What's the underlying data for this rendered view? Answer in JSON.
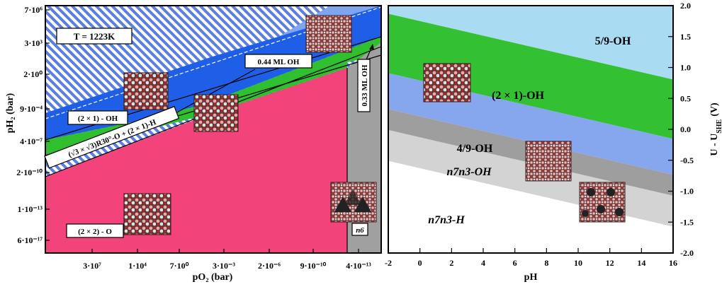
{
  "chart_data": [
    {
      "type": "area",
      "panel": "left",
      "annotation_temperature": "T = 1223K",
      "xlabel": "pO₂ (bar)",
      "ylabel": "pH₂ (bar)",
      "x_ticks": [
        "3·10⁷",
        "1·10⁴",
        "7·10⁰",
        "3·10⁻³",
        "2·10⁻⁶",
        "9·10⁻¹⁰",
        "4·10⁻¹³"
      ],
      "y_ticks": [
        "7·10⁶",
        "3·10³",
        "2·10⁰",
        "9·10⁻⁴",
        "4·10⁻⁷",
        "2·10⁻¹⁰",
        "1·10⁻¹³",
        "6·10⁻¹⁷"
      ],
      "regions": [
        {
          "label": "(2 × 2) - O",
          "color": "#f2437a"
        },
        {
          "label": "(√3 × √3)R30°-O + (2 × 1)-H",
          "color": "#2fbf2f"
        },
        {
          "label": "(2 × 1) - OH",
          "color": "#1f5fe8"
        },
        {
          "label": "0.44 ML OH",
          "color": "#7fa4f0"
        },
        {
          "label": "0.33 ML OH",
          "color": "#a0a0a0"
        },
        {
          "label": "n6",
          "color": "#a0a0a0"
        },
        {
          "label": "",
          "color": "#5b7fdc",
          "pattern": "hatched"
        }
      ]
    },
    {
      "type": "area",
      "panel": "right",
      "xlabel": "pH",
      "ylabel": "U - U_SHE (V)",
      "ylabel_main": "U - U",
      "ylabel_sub": "SHE",
      "ylabel_unit": "(V)",
      "xlim": [
        -2,
        16
      ],
      "ylim": [
        -2.0,
        2.0
      ],
      "x_ticks": [
        "-2",
        "0",
        "2",
        "4",
        "6",
        "8",
        "10",
        "12",
        "14",
        "16"
      ],
      "y_ticks": [
        "2.0",
        "1.5",
        "1.0",
        "0.5",
        "0.0",
        "-0.5",
        "-1.0",
        "-1.5",
        "-2.0"
      ],
      "slope_V_per_pH": -0.059,
      "boundaries_at_pH0": [
        1.75,
        0.79,
        0.21,
        -0.13,
        -0.63
      ],
      "regions": [
        {
          "label": "5/9-OH",
          "color": "#a9dcf2"
        },
        {
          "label": "(2 × 1)-OH",
          "color": "#33c033"
        },
        {
          "label": "4/9-OH",
          "color": "#86a6ee"
        },
        {
          "label": "n7n3-OH",
          "color": "#9e9e9e"
        },
        {
          "label": "n7n3-H",
          "color": "#d3d3d3"
        },
        {
          "label": "",
          "color": "#ffffff"
        }
      ]
    }
  ]
}
